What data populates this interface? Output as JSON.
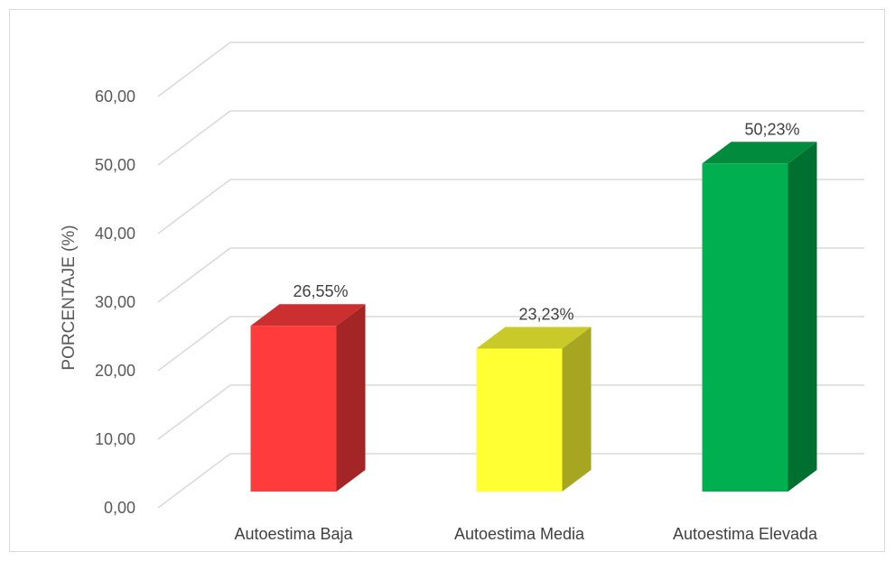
{
  "chart_data": {
    "type": "bar",
    "style": "3d-column",
    "categories": [
      "Autoestima Baja",
      "Autoestima Media",
      "Autoestima Elevada"
    ],
    "values": [
      26.55,
      23.23,
      50.23
    ],
    "data_labels": [
      "26,55%",
      "23,23%",
      "50;23%"
    ],
    "ylabel": "PORCENTAJE (%)",
    "xlabel": "",
    "ylim": [
      0,
      60
    ],
    "yticks": [
      0,
      10,
      20,
      30,
      40,
      50,
      60
    ],
    "ytick_labels": [
      "0,00",
      "10,00",
      "20,00",
      "30,00",
      "40,00",
      "50,00",
      "60,00"
    ],
    "grid": true,
    "legend": "none",
    "colors": [
      {
        "front": "#ff3b3b",
        "side": "#a32525",
        "top": "#cc2f2f"
      },
      {
        "front": "#ffff33",
        "side": "#a6a620",
        "top": "#c9c929"
      },
      {
        "front": "#00b050",
        "side": "#007030",
        "top": "#008c3c"
      }
    ]
  }
}
